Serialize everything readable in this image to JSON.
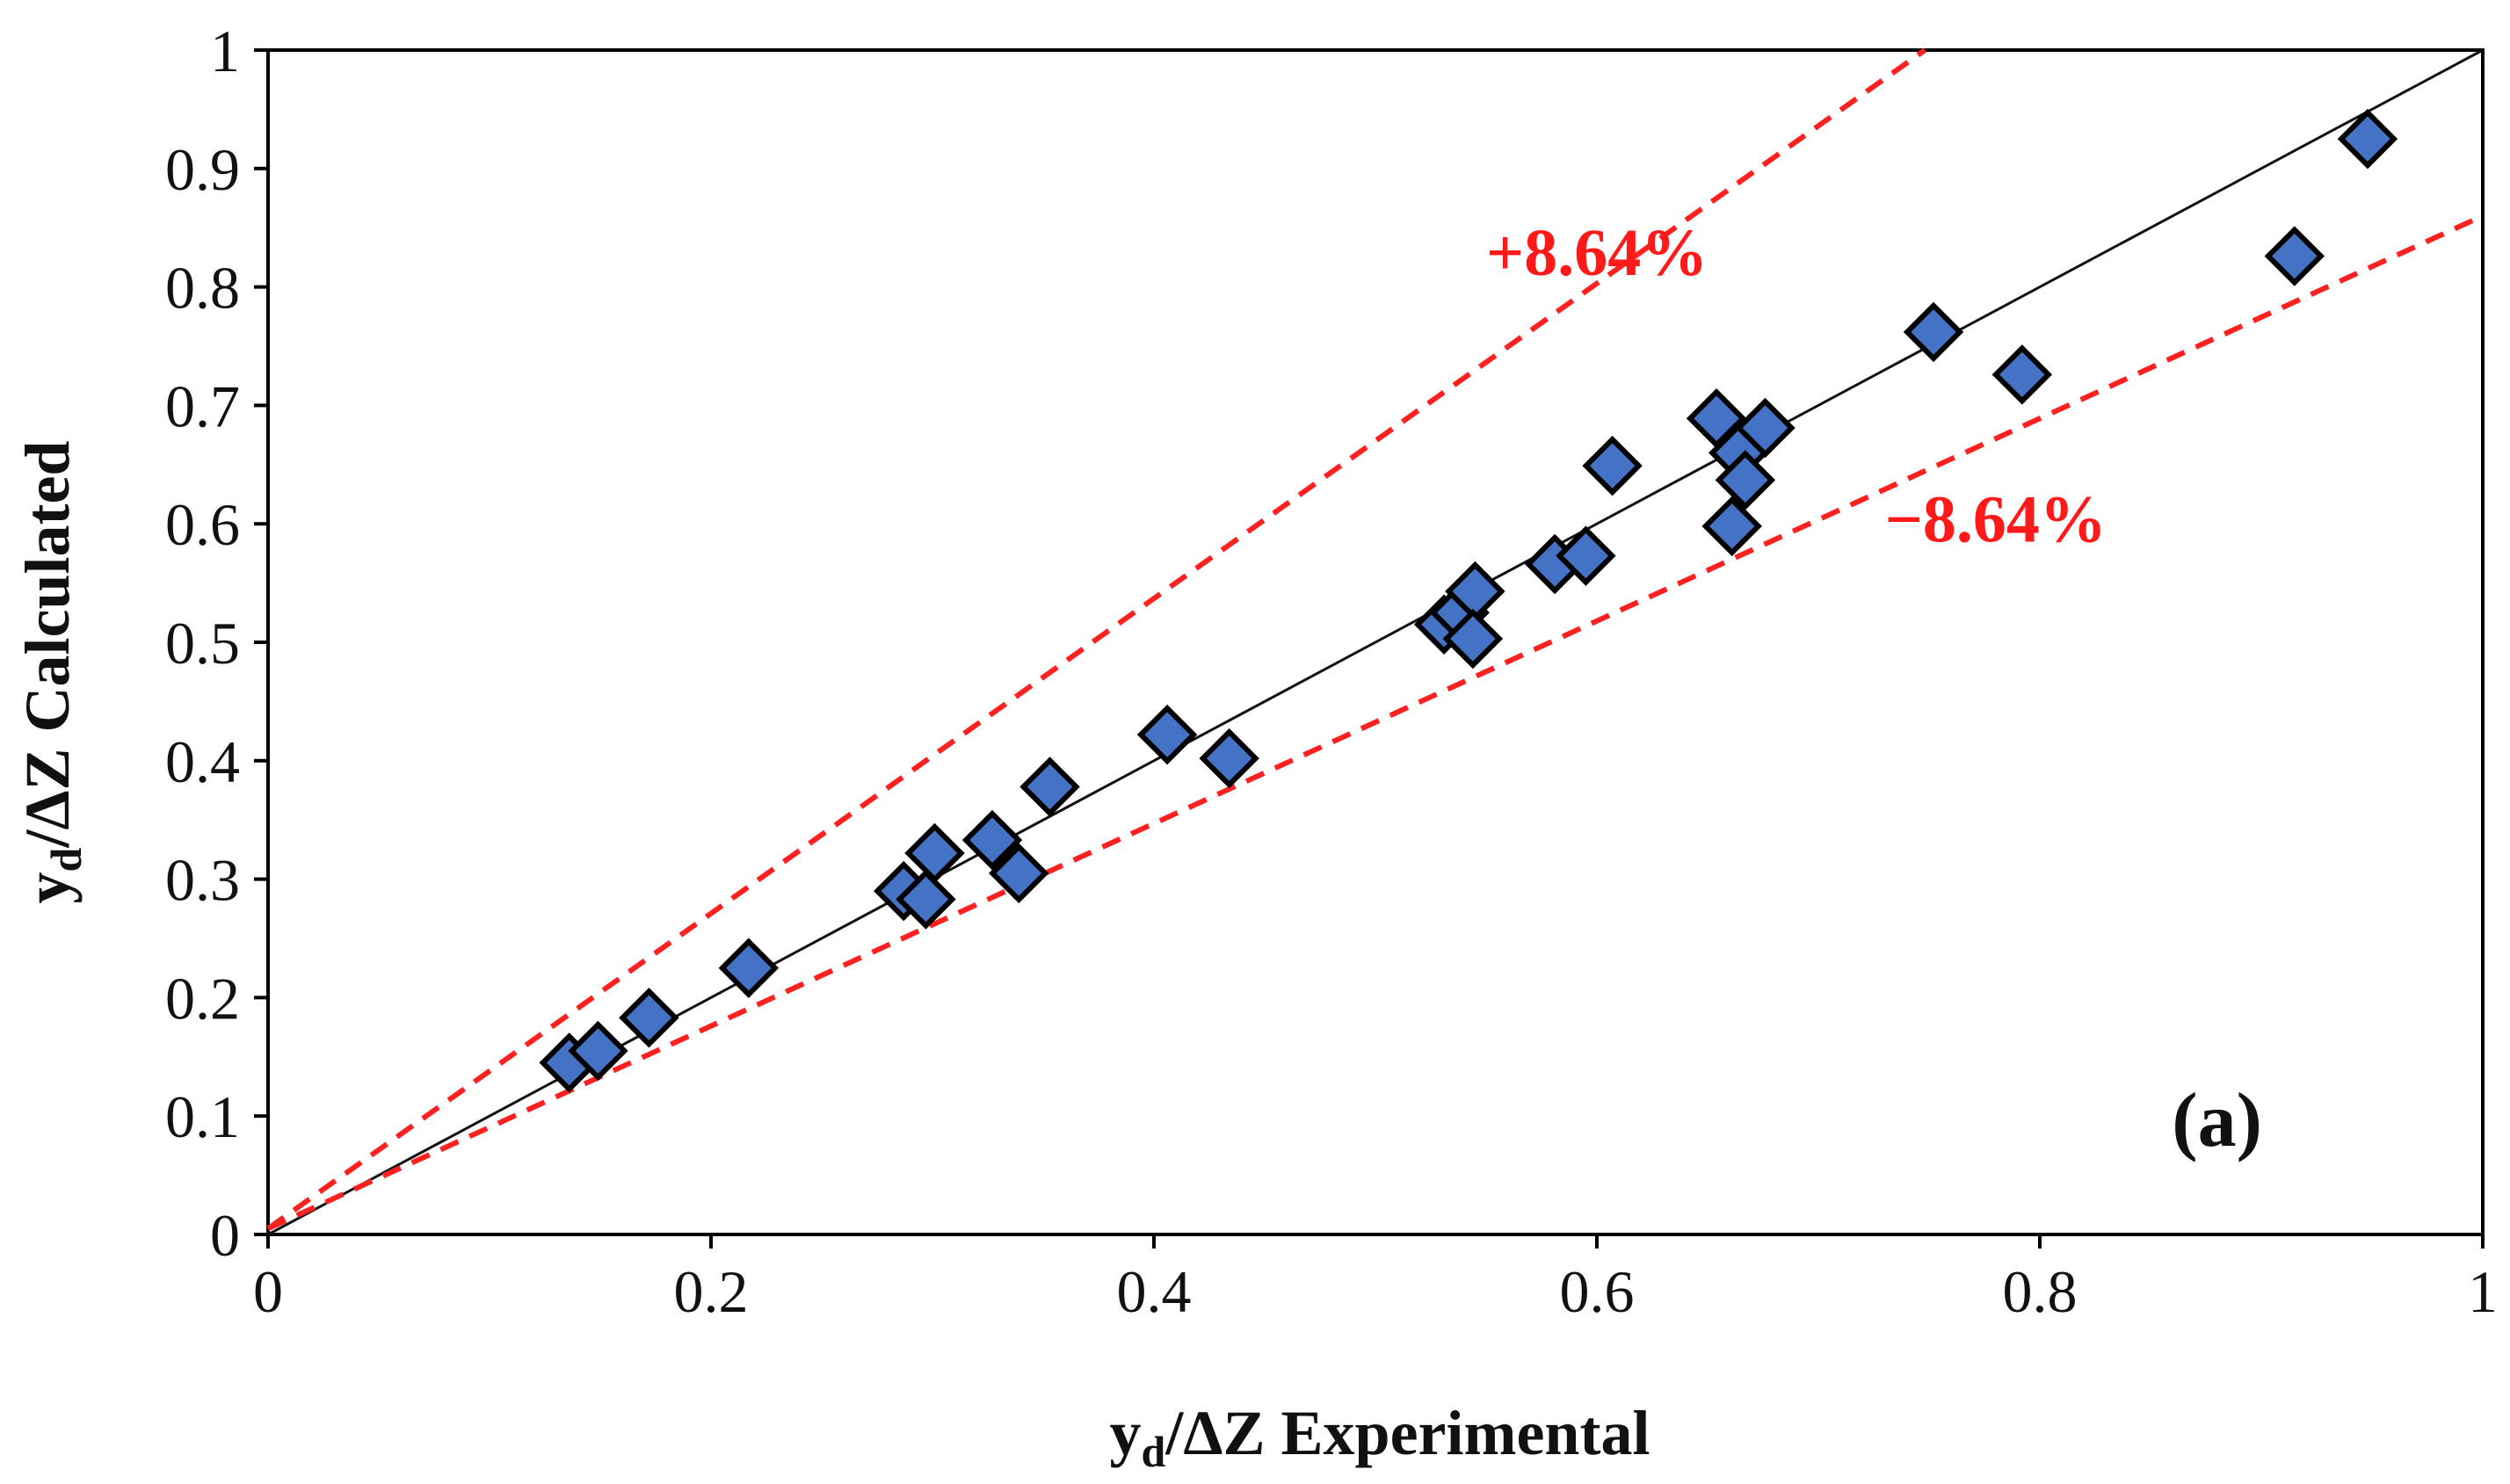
{
  "chart_data": {
    "type": "scatter",
    "panel_label": "(a)",
    "xlabel": {
      "main": "y",
      "sub": "d",
      "rest": "/ΔZ Experimental"
    },
    "ylabel": {
      "main": "y",
      "sub": "d",
      "rest": "/ΔZ Calculated"
    },
    "xlim": [
      0,
      1
    ],
    "ylim": [
      0,
      1
    ],
    "grid": false,
    "x_ticks": [
      0,
      0.2,
      0.4,
      0.6,
      0.8,
      1
    ],
    "x_tick_labels": [
      "0",
      "0.2",
      "0.4",
      "0.6",
      "0.8",
      "1"
    ],
    "y_ticks": [
      0,
      0.1,
      0.2,
      0.3,
      0.4,
      0.5,
      0.6,
      0.7,
      0.8,
      0.9,
      1
    ],
    "y_tick_labels": [
      "0",
      "0.1",
      "0.2",
      "0.3",
      "0.4",
      "0.5",
      "0.6",
      "0.7",
      "0.8",
      "0.9",
      "1"
    ],
    "reference_lines": [
      {
        "name": "1:1 line",
        "slope": 1.0,
        "intercept": 0.0,
        "color": "#111111",
        "style": "solid"
      },
      {
        "name": "upper bound",
        "label": "+8.64%",
        "slope": 1.33,
        "intercept": 0.005,
        "color": "#ff2020",
        "style": "dashed",
        "label_at": [
          0.55,
          0.81
        ]
      },
      {
        "name": "lower bound",
        "label": "−8.64%",
        "slope": 0.855,
        "intercept": 0.005,
        "color": "#ff2020",
        "style": "dashed",
        "label_at": [
          0.73,
          0.585
        ]
      }
    ],
    "series": [
      {
        "name": "data",
        "marker": "diamond",
        "color": "#4472c4",
        "edge_color": "#000000",
        "points": [
          [
            0.136,
            0.145
          ],
          [
            0.149,
            0.155
          ],
          [
            0.172,
            0.183
          ],
          [
            0.217,
            0.225
          ],
          [
            0.287,
            0.29
          ],
          [
            0.297,
            0.283
          ],
          [
            0.301,
            0.322
          ],
          [
            0.327,
            0.333
          ],
          [
            0.339,
            0.305
          ],
          [
            0.353,
            0.378
          ],
          [
            0.406,
            0.422
          ],
          [
            0.434,
            0.402
          ],
          [
            0.531,
            0.515
          ],
          [
            0.538,
            0.525
          ],
          [
            0.545,
            0.543
          ],
          [
            0.544,
            0.503
          ],
          [
            0.581,
            0.566
          ],
          [
            0.595,
            0.573
          ],
          [
            0.607,
            0.649
          ],
          [
            0.654,
            0.689
          ],
          [
            0.661,
            0.598
          ],
          [
            0.664,
            0.66
          ],
          [
            0.667,
            0.637
          ],
          [
            0.676,
            0.681
          ],
          [
            0.752,
            0.762
          ],
          [
            0.792,
            0.726
          ],
          [
            0.915,
            0.826
          ],
          [
            0.948,
            0.925
          ]
        ]
      }
    ]
  }
}
